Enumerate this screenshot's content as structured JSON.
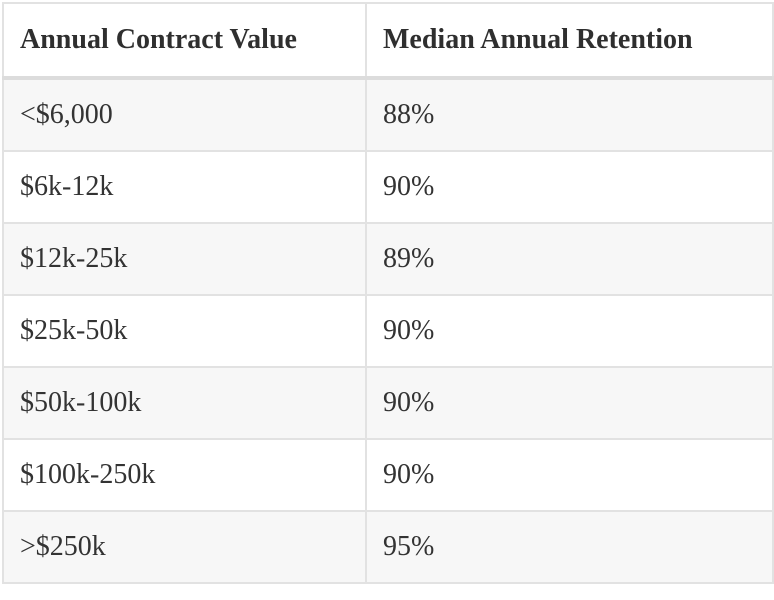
{
  "table": {
    "header": [
      "Annual Contract Value",
      "Median Annual Retention"
    ],
    "rows": [
      [
        "<$6,000",
        "88%"
      ],
      [
        "$6k-12k",
        "90%"
      ],
      [
        "$12k-25k",
        "89%"
      ],
      [
        "$25k-50k",
        "90%"
      ],
      [
        "$50k-100k",
        "90%"
      ],
      [
        "$100k-250k",
        "90%"
      ],
      [
        ">$250k",
        "95%"
      ]
    ]
  }
}
